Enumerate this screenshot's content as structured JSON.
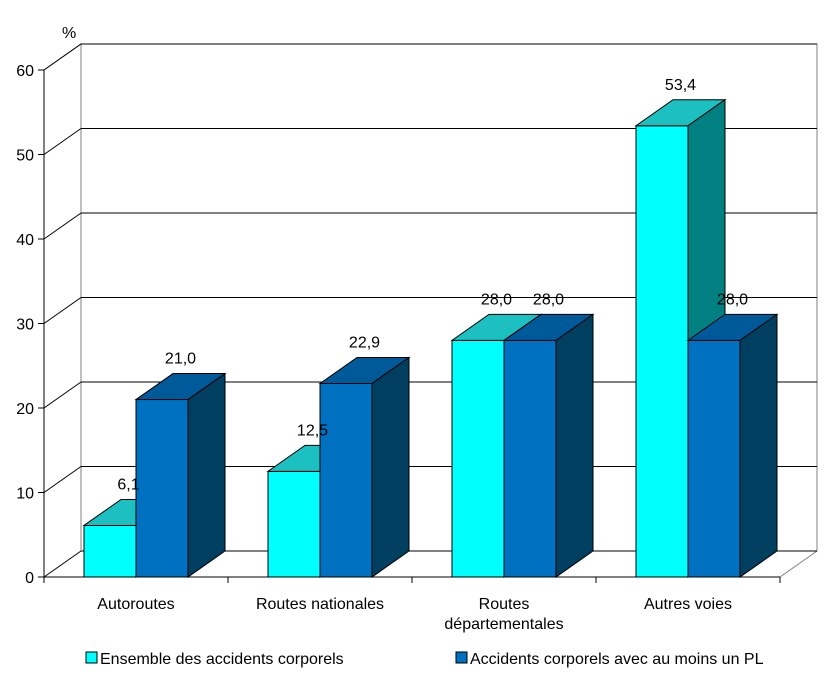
{
  "chart_data": {
    "type": "bar",
    "style": "3d-clustered",
    "y_unit_label": "%",
    "ylim": [
      0,
      60
    ],
    "yticks": [
      0,
      10,
      20,
      30,
      40,
      50,
      60
    ],
    "grid": true,
    "legend_position": "bottom",
    "categories": [
      [
        "Autoroutes"
      ],
      [
        "Routes nationales"
      ],
      [
        "Routes",
        "départementales"
      ],
      [
        "Autres voies"
      ]
    ],
    "series": [
      {
        "name": "Ensemble des accidents corporels",
        "values": [
          6.1,
          12.5,
          28.0,
          53.4
        ],
        "labels": [
          "6,1",
          "12,5",
          "28,0",
          "53,4"
        ],
        "color_front": "#00FFFF",
        "color_top": "#1CC0C0",
        "color_side": "#008080"
      },
      {
        "name": "Accidents corporels avec au moins un PL",
        "values": [
          21.0,
          22.9,
          28.0,
          28.0
        ],
        "labels": [
          "21,0",
          "22,9",
          "28,0",
          "28,0"
        ],
        "color_front": "#0070C0",
        "color_top": "#005A9A",
        "color_side": "#003F60"
      }
    ]
  }
}
